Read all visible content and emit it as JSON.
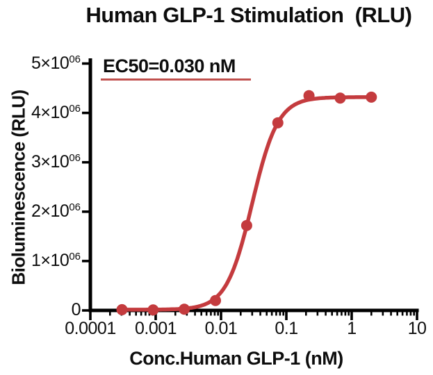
{
  "chart_data": {
    "type": "scatter",
    "subtype": "dose-response-4PL-fit",
    "title": "Human GLP-1 Stimulation  (RLU)",
    "xlabel": "Conc.Human GLP-1 (nM)",
    "ylabel": "Bioluminescence (RLU)",
    "annotation": "EC50=0.030 nM",
    "ec50_nM": 0.03,
    "x_scale": "log",
    "xlim": [
      0.0001,
      10
    ],
    "ylim": [
      0,
      5000000
    ],
    "grid": false,
    "legend": "none",
    "x_ticks": [
      {
        "value": 0.0001,
        "label": "0.0001"
      },
      {
        "value": 0.001,
        "label": "0.001"
      },
      {
        "value": 0.01,
        "label": "0.01"
      },
      {
        "value": 0.1,
        "label": "0.1"
      },
      {
        "value": 1,
        "label": "1"
      },
      {
        "value": 10,
        "label": "10"
      }
    ],
    "y_ticks": [
      {
        "value": 0,
        "mantissa": "0",
        "exponent": ""
      },
      {
        "value": 1000000,
        "mantissa": "1×10",
        "exponent": "06"
      },
      {
        "value": 2000000,
        "mantissa": "2×10",
        "exponent": "06"
      },
      {
        "value": 3000000,
        "mantissa": "3×10",
        "exponent": "06"
      },
      {
        "value": 4000000,
        "mantissa": "4×10",
        "exponent": "06"
      },
      {
        "value": 5000000,
        "mantissa": "5×10",
        "exponent": "06"
      }
    ],
    "series": [
      {
        "name": "Human GLP-1",
        "marker": "circle",
        "color": "#c43b3e",
        "points": [
          {
            "x": 0.000305,
            "y": 15000
          },
          {
            "x": 0.000914,
            "y": 10000
          },
          {
            "x": 0.00274,
            "y": 25000
          },
          {
            "x": 0.00823,
            "y": 200000
          },
          {
            "x": 0.0247,
            "y": 1720000
          },
          {
            "x": 0.0741,
            "y": 3800000
          },
          {
            "x": 0.222,
            "y": 4350000
          },
          {
            "x": 0.667,
            "y": 4300000
          },
          {
            "x": 2,
            "y": 4320000
          }
        ],
        "fit": {
          "model": "4PL",
          "bottom": 15000,
          "top": 4320000,
          "ec50": 0.03,
          "hill": 2.2
        }
      }
    ],
    "colors": {
      "curve": "#c43b3e",
      "underline": "#c0504d",
      "axis": "#000000",
      "text": "#0d0d0d"
    }
  }
}
